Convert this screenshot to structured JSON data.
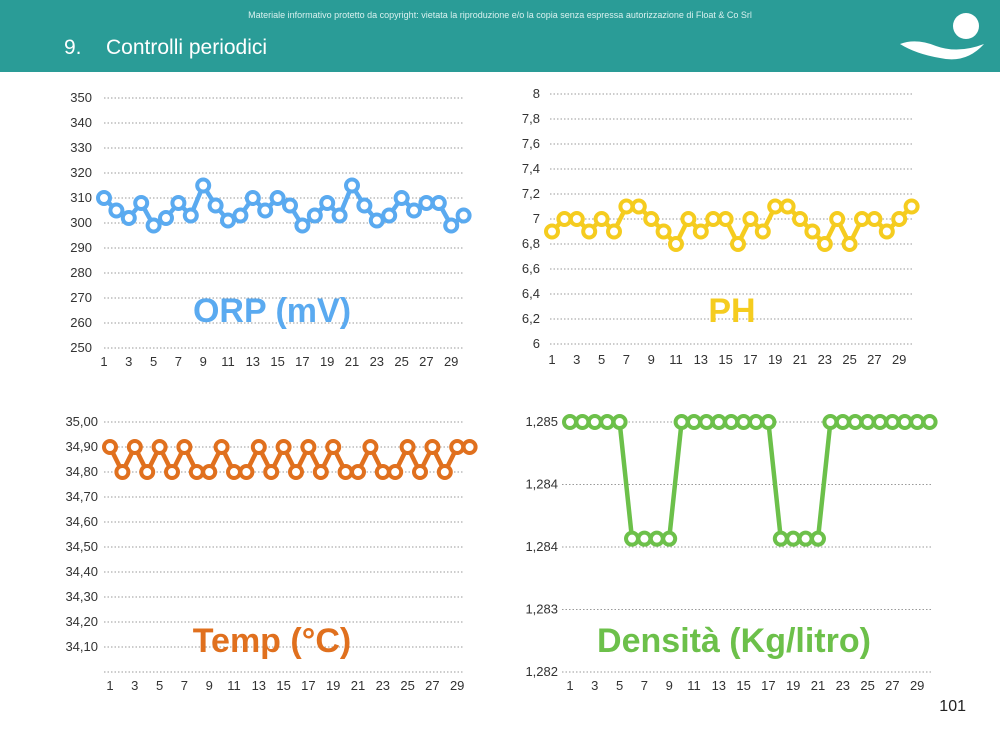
{
  "header": {
    "copyright": "Materiale informativo protetto da copyright: vietata la riproduzione e/o la copia senza espressa autorizzazione di Float & Co Srl",
    "section_number": "9.",
    "section_title": "Controlli periodici",
    "logo_icon": "float-logo-icon",
    "color": "#2a9c97"
  },
  "page_number": "101",
  "chart_data": [
    {
      "type": "line",
      "title": "ORP (mV)",
      "color": "#5aaaf0",
      "x": [
        1,
        2,
        3,
        4,
        5,
        6,
        7,
        8,
        9,
        10,
        11,
        12,
        13,
        14,
        15,
        16,
        17,
        18,
        19,
        20,
        21,
        22,
        23,
        24,
        25,
        26,
        27,
        28,
        29,
        30
      ],
      "x_tick_labels": [
        "1",
        "3",
        "5",
        "7",
        "9",
        "11",
        "13",
        "15",
        "17",
        "19",
        "21",
        "23",
        "25",
        "27",
        "29"
      ],
      "values": [
        310,
        305,
        302,
        308,
        299,
        302,
        308,
        303,
        315,
        307,
        301,
        303,
        310,
        305,
        310,
        307,
        299,
        303,
        308,
        303,
        315,
        307,
        301,
        303,
        310,
        305,
        308,
        308,
        299,
        303
      ],
      "y_tick_labels": [
        "350",
        "340",
        "330",
        "320",
        "310",
        "300",
        "290",
        "280",
        "270",
        "260",
        "250"
      ],
      "ylim": [
        250,
        350
      ]
    },
    {
      "type": "line",
      "title": "PH",
      "color": "#f5cc1f",
      "x": [
        1,
        2,
        3,
        4,
        5,
        6,
        7,
        8,
        9,
        10,
        11,
        12,
        13,
        14,
        15,
        16,
        17,
        18,
        19,
        20,
        21,
        22,
        23,
        24,
        25,
        26,
        27,
        28,
        29,
        30
      ],
      "x_tick_labels": [
        "1",
        "3",
        "5",
        "7",
        "9",
        "11",
        "13",
        "15",
        "17",
        "19",
        "21",
        "23",
        "25",
        "27",
        "29"
      ],
      "values": [
        6.9,
        7.0,
        7.0,
        6.9,
        7.0,
        6.9,
        7.1,
        7.1,
        7.0,
        6.9,
        6.8,
        7.0,
        6.9,
        7.0,
        7.0,
        6.8,
        7.0,
        6.9,
        7.1,
        7.1,
        7.0,
        6.9,
        6.8,
        7.0,
        6.8,
        7.0,
        7.0,
        6.9,
        7.0,
        7.1
      ],
      "y_tick_labels": [
        "8",
        "7,8",
        "7,6",
        "7,4",
        "7,2",
        "7",
        "6,8",
        "6,6",
        "6,4",
        "6,2",
        "6"
      ],
      "ylim": [
        6,
        8
      ]
    },
    {
      "type": "line",
      "title": "Temp (°C)",
      "color": "#e0701e",
      "x": [
        1,
        2,
        3,
        4,
        5,
        6,
        7,
        8,
        9,
        10,
        11,
        12,
        13,
        14,
        15,
        16,
        17,
        18,
        19,
        20,
        21,
        22,
        23,
        24,
        25,
        26,
        27,
        28,
        29,
        30
      ],
      "x_tick_labels": [
        "1",
        "3",
        "5",
        "7",
        "9",
        "11",
        "13",
        "15",
        "17",
        "19",
        "21",
        "23",
        "25",
        "27",
        "29"
      ],
      "values": [
        34.9,
        34.8,
        34.9,
        34.8,
        34.9,
        34.8,
        34.9,
        34.8,
        34.8,
        34.9,
        34.8,
        34.8,
        34.9,
        34.8,
        34.9,
        34.8,
        34.9,
        34.8,
        34.9,
        34.8,
        34.8,
        34.9,
        34.8,
        34.8,
        34.9,
        34.8,
        34.9,
        34.8,
        34.9,
        34.9
      ],
      "y_tick_labels": [
        "35,00",
        "34,90",
        "34,80",
        "34,70",
        "34,60",
        "34,50",
        "34,40",
        "34,30",
        "34,20",
        "34,10"
      ],
      "ylim": [
        34.0,
        35.0
      ]
    },
    {
      "type": "line",
      "title": "Densità (Kg/litro)",
      "color": "#6cc04a",
      "x": [
        1,
        2,
        3,
        4,
        5,
        6,
        7,
        8,
        9,
        10,
        11,
        12,
        13,
        14,
        15,
        16,
        17,
        18,
        19,
        20,
        21,
        22,
        23,
        24,
        25,
        26,
        27,
        28,
        29,
        30
      ],
      "x_tick_labels": [
        "1",
        "3",
        "5",
        "7",
        "9",
        "11",
        "13",
        "15",
        "17",
        "19",
        "21",
        "23",
        "25",
        "27",
        "29"
      ],
      "values": [
        1.285,
        1.285,
        1.285,
        1.285,
        1.285,
        1.2836,
        1.2836,
        1.2836,
        1.2836,
        1.285,
        1.285,
        1.285,
        1.285,
        1.285,
        1.285,
        1.285,
        1.285,
        1.2836,
        1.2836,
        1.2836,
        1.2836,
        1.285,
        1.285,
        1.285,
        1.285,
        1.285,
        1.285,
        1.285,
        1.285,
        1.285
      ],
      "y_tick_labels": [
        "1,285",
        "1,284",
        "1,284",
        "1,283",
        "1,282"
      ],
      "ylim": [
        1.282,
        1.285
      ]
    }
  ]
}
